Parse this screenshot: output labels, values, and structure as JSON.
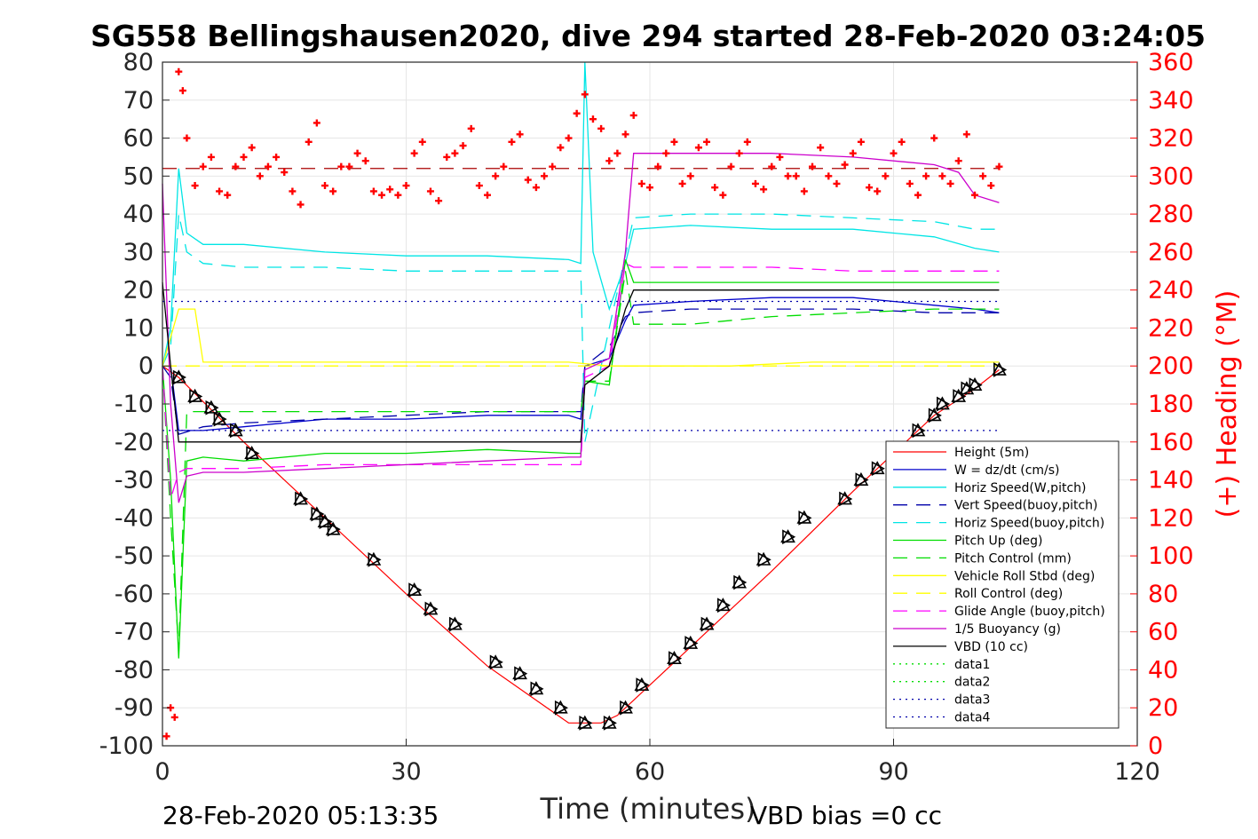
{
  "title": "SG558 Bellingshausen2020, dive 294 started 28-Feb-2020 03:24:05",
  "footer": {
    "end_time": "28-Feb-2020 05:13:35",
    "vbd_bias": "VBD bias =0 cc"
  },
  "colors": {
    "height": "#ff0000",
    "w": "#0000cc",
    "horiz_w": "#00e5e5",
    "vert_buoy": "#0000aa",
    "horiz_buoy": "#00e5e5",
    "pitch": "#00dd00",
    "pitch_ctrl": "#00dd00",
    "roll": "#ffff00",
    "roll_ctrl": "#ffff00",
    "glide": "#ff00ff",
    "buoyancy": "#cc00cc",
    "vbd": "#000000",
    "heading": "#ff0000",
    "grid": "#e6e6e6"
  },
  "chart_data": {
    "type": "line",
    "xlabel": "Time (minutes)",
    "ylabel_right": "(+) Heading (°M)",
    "xlim": [
      0,
      120
    ],
    "ylim": [
      -100,
      80
    ],
    "ylim_right": [
      0,
      360
    ],
    "x_ticks": [
      0,
      30,
      60,
      90,
      120
    ],
    "y_ticks": [
      -100,
      -90,
      -80,
      -70,
      -60,
      -50,
      -40,
      -30,
      -20,
      -10,
      0,
      10,
      20,
      30,
      40,
      50,
      60,
      70,
      80
    ],
    "y_ticks_right": [
      0,
      20,
      40,
      60,
      80,
      100,
      120,
      140,
      160,
      180,
      200,
      220,
      240,
      260,
      280,
      300,
      320,
      340,
      360
    ],
    "grid": true,
    "legend_position": "bottom-right",
    "series": [
      {
        "name": "Height (5m)",
        "style": "solid",
        "color": "#ff0000",
        "x": [
          0,
          2,
          10,
          20,
          30,
          40,
          50,
          52,
          54,
          56,
          58,
          65,
          75,
          85,
          95,
          100,
          103
        ],
        "y": [
          0,
          -3,
          -20,
          -40,
          -60,
          -79,
          -94,
          -94,
          -94,
          -92,
          -88,
          -74,
          -54,
          -33,
          -13,
          -6,
          -1
        ]
      },
      {
        "name": "W = dz/dt (cm/s)",
        "style": "solid",
        "color": "#0000cc",
        "x": [
          0,
          1,
          2,
          5,
          10,
          20,
          30,
          40,
          50,
          51.5,
          52,
          55,
          57,
          58,
          65,
          75,
          85,
          95,
          100,
          103
        ],
        "y": [
          0,
          0,
          -17,
          -17,
          -16,
          -14,
          -14,
          -13,
          -13,
          -14,
          0,
          2,
          12,
          16,
          17,
          18,
          18,
          16,
          15,
          14
        ]
      },
      {
        "name": "Horiz Speed(W,pitch)",
        "style": "solid",
        "color": "#00e5e5",
        "x": [
          0,
          1,
          2,
          3,
          5,
          10,
          20,
          30,
          40,
          50,
          51.5,
          52,
          53,
          55,
          57,
          58,
          65,
          75,
          85,
          95,
          100,
          103
        ],
        "y": [
          0,
          10,
          52,
          35,
          32,
          32,
          30,
          29,
          29,
          28,
          27,
          80,
          30,
          15,
          27,
          36,
          37,
          36,
          36,
          34,
          31,
          30
        ]
      },
      {
        "name": "Vert Speed(buoy,pitch)",
        "style": "dashed",
        "color": "#0000aa",
        "x": [
          0,
          1,
          2,
          5,
          10,
          20,
          30,
          40,
          50,
          51.5,
          52,
          55,
          57,
          58,
          65,
          75,
          85,
          95,
          100,
          103
        ],
        "y": [
          0,
          -3,
          -18,
          -16,
          -15,
          -14,
          -13,
          -12,
          -12,
          -12,
          0,
          5,
          13,
          14,
          15,
          15,
          15,
          14,
          14,
          14
        ]
      },
      {
        "name": "Horiz Speed(buoy,pitch)",
        "style": "dashed",
        "color": "#00e5e5",
        "x": [
          0,
          1,
          2,
          3,
          5,
          10,
          20,
          30,
          40,
          50,
          51.5,
          52,
          55,
          58,
          65,
          75,
          85,
          95,
          100,
          103
        ],
        "y": [
          0,
          5,
          40,
          30,
          27,
          26,
          26,
          25,
          25,
          25,
          25,
          -20,
          10,
          39,
          40,
          40,
          39,
          38,
          36,
          36
        ]
      },
      {
        "name": "Pitch Up (deg)",
        "style": "solid",
        "color": "#00dd00",
        "x": [
          0,
          1,
          2,
          3,
          5,
          10,
          20,
          30,
          40,
          50,
          51.5,
          52,
          55,
          57,
          58,
          65,
          75,
          85,
          95,
          100,
          103
        ],
        "y": [
          0,
          -30,
          -77,
          -25,
          -24,
          -25,
          -23,
          -23,
          -22,
          -23,
          -23,
          -4,
          -5,
          28,
          22,
          22,
          22,
          22,
          22,
          22,
          22
        ]
      },
      {
        "name": "Pitch Control (mm)",
        "style": "dashed",
        "color": "#00dd00",
        "x": [
          0,
          1,
          2,
          3,
          10,
          20,
          30,
          40,
          50,
          51.5,
          52,
          55,
          57,
          58,
          65,
          75,
          85,
          95,
          100,
          103
        ],
        "y": [
          0,
          -40,
          -75,
          -12,
          -12,
          -12,
          -12,
          -12,
          -12,
          -12,
          -4,
          -4,
          25,
          11,
          11,
          13,
          14,
          15,
          15,
          15
        ]
      },
      {
        "name": "Vehicle Roll Stbd (deg)",
        "style": "solid",
        "color": "#ffff00",
        "x": [
          0,
          2,
          4,
          5,
          6,
          10,
          20,
          30,
          40,
          50,
          55,
          60,
          70,
          80,
          90,
          100,
          103
        ],
        "y": [
          0,
          15,
          15,
          1,
          1,
          1,
          1,
          1,
          1,
          1,
          0,
          0,
          0,
          1,
          1,
          1,
          1
        ]
      },
      {
        "name": "Roll Control (deg)",
        "style": "dashed",
        "color": "#ffff00",
        "x": [
          0,
          10,
          20,
          30,
          40,
          50,
          60,
          70,
          80,
          90,
          100,
          103
        ],
        "y": [
          0,
          0,
          0,
          0,
          0,
          0,
          0,
          0,
          0,
          0,
          0,
          0
        ]
      },
      {
        "name": "Glide Angle (buoy,pitch)",
        "style": "dashed",
        "color": "#ff00ff",
        "x": [
          0,
          1,
          2,
          3,
          5,
          10,
          20,
          30,
          40,
          50,
          51.5,
          52,
          55,
          57,
          58,
          65,
          75,
          85,
          95,
          100,
          103
        ],
        "y": [
          0,
          -35,
          -28,
          -27,
          -27,
          -27,
          -26,
          -26,
          -26,
          -26,
          -26,
          -3,
          0,
          27,
          26,
          26,
          26,
          25,
          25,
          25,
          25
        ]
      },
      {
        "name": "1/5 Buoyancy (g)",
        "style": "solid",
        "color": "#cc00cc",
        "x": [
          0,
          1,
          2,
          3,
          5,
          10,
          20,
          30,
          40,
          50,
          51.5,
          52,
          55,
          57,
          58,
          65,
          75,
          85,
          95,
          98,
          100,
          103
        ],
        "y": [
          48,
          -10,
          -36,
          -29,
          -28,
          -28,
          -27,
          -26,
          -25,
          -24,
          -24,
          -1,
          2,
          30,
          56,
          56,
          56,
          55,
          53,
          51,
          45,
          43
        ]
      },
      {
        "name": "VBD (10 cc)",
        "style": "solid",
        "color": "#000000",
        "x": [
          0,
          1,
          2,
          10,
          20,
          30,
          40,
          50,
          51.5,
          52,
          55,
          57,
          58,
          65,
          75,
          85,
          95,
          100,
          103
        ],
        "y": [
          22,
          0,
          -20,
          -20,
          -20,
          -20,
          -20,
          -20,
          -20,
          -5,
          0,
          15,
          20,
          20,
          20,
          20,
          20,
          20,
          20
        ]
      },
      {
        "name": "data1",
        "style": "dotted",
        "color": "#00dd00",
        "x": [],
        "y": []
      },
      {
        "name": "data2",
        "style": "dotted",
        "color": "#00dd00",
        "x": [],
        "y": []
      },
      {
        "name": "data3",
        "style": "dotted",
        "color": "#0000aa",
        "x": [],
        "y": []
      },
      {
        "name": "data4",
        "style": "dotted",
        "color": "#0000aa",
        "x": [
          0,
          103,
          null,
          0,
          103
        ],
        "y": [
          17,
          17,
          null,
          -17,
          -17
        ]
      }
    ],
    "heading_series": {
      "axis": "right",
      "marker": "+",
      "color": "#ff0000",
      "reference_heading": 304,
      "x": [
        0.5,
        1,
        1.5,
        2,
        2.5,
        3,
        4,
        5,
        6,
        7,
        8,
        9,
        10,
        11,
        12,
        13,
        14,
        15,
        16,
        17,
        18,
        19,
        20,
        21,
        22,
        23,
        24,
        25,
        26,
        27,
        28,
        29,
        30,
        31,
        32,
        33,
        34,
        35,
        36,
        37,
        38,
        39,
        40,
        41,
        42,
        43,
        44,
        45,
        46,
        47,
        48,
        49,
        50,
        51,
        52,
        53,
        54,
        55,
        56,
        57,
        58,
        59,
        60,
        61,
        62,
        63,
        64,
        65,
        66,
        67,
        68,
        69,
        70,
        71,
        72,
        73,
        74,
        75,
        76,
        77,
        78,
        79,
        80,
        81,
        82,
        83,
        84,
        85,
        86,
        87,
        88,
        89,
        90,
        91,
        92,
        93,
        94,
        95,
        96,
        97,
        98,
        99,
        100,
        101,
        102,
        103
      ],
      "y": [
        5,
        20,
        15,
        355,
        345,
        320,
        295,
        305,
        310,
        292,
        290,
        305,
        310,
        315,
        300,
        305,
        310,
        302,
        292,
        285,
        318,
        328,
        295,
        292,
        305,
        305,
        312,
        308,
        292,
        290,
        293,
        290,
        295,
        312,
        318,
        292,
        287,
        310,
        312,
        316,
        325,
        295,
        290,
        300,
        305,
        318,
        322,
        298,
        294,
        300,
        305,
        315,
        320,
        333,
        343,
        330,
        325,
        308,
        312,
        322,
        332,
        296,
        294,
        305,
        312,
        318,
        296,
        300,
        315,
        318,
        294,
        290,
        305,
        312,
        318,
        296,
        293,
        305,
        310,
        300,
        300,
        292,
        305,
        315,
        300,
        296,
        306,
        312,
        318,
        294,
        292,
        300,
        312,
        318,
        296,
        290,
        300,
        320,
        300,
        296,
        308,
        322,
        290,
        300,
        295,
        305
      ]
    },
    "vbd_markers": {
      "x": [
        2,
        4,
        6,
        7,
        9,
        11,
        17,
        19,
        20,
        21,
        26,
        31,
        33,
        36,
        41,
        44,
        46,
        49,
        52,
        55,
        57,
        59,
        63,
        65,
        67,
        69,
        71,
        74,
        77,
        79,
        84,
        86,
        88,
        93,
        95,
        96,
        98,
        99,
        100,
        103
      ],
      "y": [
        -3,
        -8,
        -11,
        -14,
        -17,
        -23,
        -35,
        -39,
        -41,
        -43,
        -51,
        -59,
        -64,
        -68,
        -78,
        -81,
        -85,
        -90,
        -94,
        -94,
        -90,
        -84,
        -77,
        -73,
        -68,
        -63,
        -57,
        -51,
        -45,
        -40,
        -35,
        -30,
        -27,
        -17,
        -13,
        -10,
        -8,
        -6,
        -5,
        -1
      ]
    }
  }
}
